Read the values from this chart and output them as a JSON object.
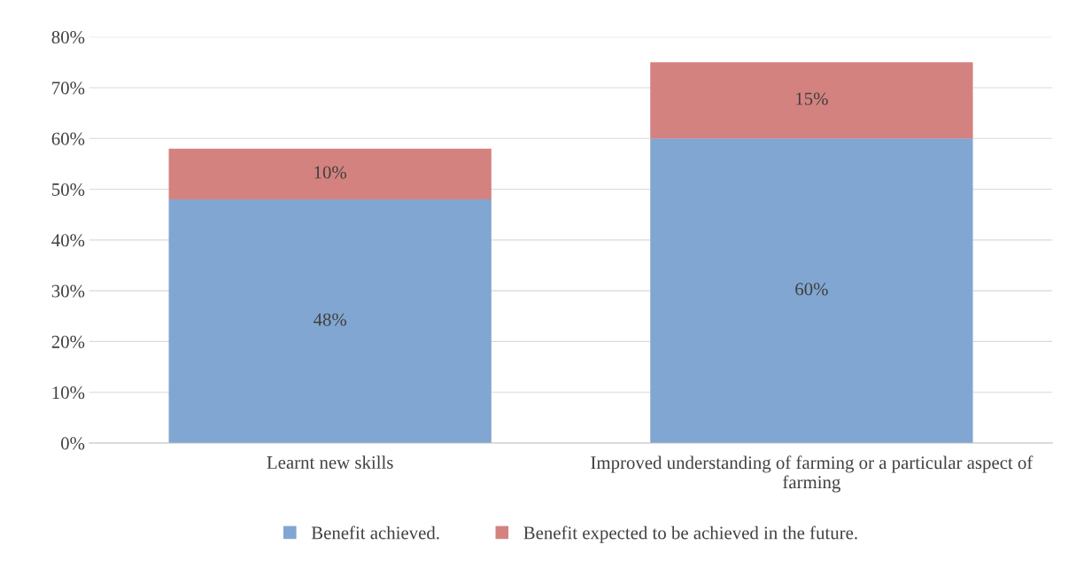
{
  "chart_data": {
    "type": "bar",
    "stacked": true,
    "categories": [
      "Learnt new skills",
      "Improved understanding of farming or a particular aspect of farming"
    ],
    "series": [
      {
        "name": "Benefit achieved.",
        "color": "#81a6d1",
        "values": [
          48,
          60
        ],
        "value_labels": [
          "48%",
          "60%"
        ]
      },
      {
        "name": "Benefit expected to be achieved in the future.",
        "color": "#d4827f",
        "values": [
          10,
          15
        ],
        "value_labels": [
          "10%",
          "15%"
        ]
      }
    ],
    "ylim": [
      0,
      80
    ],
    "yticks": [
      {
        "value": 0,
        "label": "0%"
      },
      {
        "value": 10,
        "label": "10%"
      },
      {
        "value": 20,
        "label": "20%"
      },
      {
        "value": 30,
        "label": "30%"
      },
      {
        "value": 40,
        "label": "40%"
      },
      {
        "value": 50,
        "label": "50%"
      },
      {
        "value": 60,
        "label": "60%"
      },
      {
        "value": 70,
        "label": "70%"
      },
      {
        "value": 80,
        "label": "80%"
      }
    ],
    "grid": "y",
    "legend": "bottom"
  }
}
